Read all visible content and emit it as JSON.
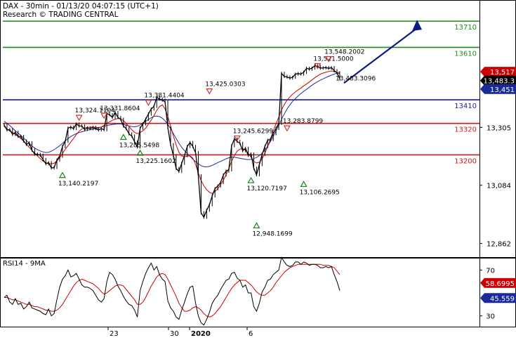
{
  "header": {
    "instrument_line": "DAX - 30min - 01/13/20 04:07:15 (UTC+1)",
    "research_line": "Research © TRADING CENTRAL"
  },
  "colors": {
    "price": "#000000",
    "ma_fast": "#cc0000",
    "ma_slow": "#1f2f99",
    "resistance_green": "#1a8c1a",
    "pivot_blue": "#1a1a99",
    "support_red": "#cc1a1a",
    "arrow": "#0d1a80",
    "triangle_top": "#cc3333",
    "triangle_bottom": "#1a801a",
    "badge_current": "#000000",
    "badge_red": "#cc0000",
    "badge_blue": "#1a2a99"
  },
  "chart_data": [
    {
      "type": "line",
      "panel": "price",
      "ylim": [
        12810,
        13780
      ],
      "y_ticks": [
        "13,305",
        "13,084",
        "12,862"
      ],
      "y_tick_values": [
        13305,
        13084,
        12862
      ],
      "x_ticks": [
        "23",
        "30",
        "2020",
        "6"
      ],
      "levels": [
        {
          "label": "13710",
          "value": 13710,
          "color": "#1a8c1a",
          "role": "resistance"
        },
        {
          "label": "13610",
          "value": 13610,
          "color": "#1a8c1a",
          "role": "resistance"
        },
        {
          "label": "13410",
          "value": 13410,
          "color": "#1a1a99",
          "role": "pivot"
        },
        {
          "label": "13320",
          "value": 13320,
          "color": "#cc1a1a",
          "role": "support"
        },
        {
          "label": "13200",
          "value": 13200,
          "color": "#cc1a1a",
          "role": "support"
        }
      ],
      "annotations": [
        {
          "label": "13,324.1104",
          "value": 13324.1104,
          "kind": "top"
        },
        {
          "label": "13,331.8604",
          "value": 13331.8604,
          "kind": "top"
        },
        {
          "label": "13,381.4404",
          "value": 13381.4404,
          "kind": "top"
        },
        {
          "label": "13,425.0303",
          "value": 13425.0303,
          "kind": "top"
        },
        {
          "label": "13,285.5498",
          "value": 13285.5498,
          "kind": "bottom"
        },
        {
          "label": "13,225.1602",
          "value": 13225.1602,
          "kind": "bottom"
        },
        {
          "label": "13,140.2197",
          "value": 13140.2197,
          "kind": "bottom"
        },
        {
          "label": "13,245.6299",
          "value": 13245.6299,
          "kind": "top"
        },
        {
          "label": "13,120.7197",
          "value": 13120.7197,
          "kind": "bottom"
        },
        {
          "label": "12,948.1699",
          "value": 12948.1699,
          "kind": "bottom"
        },
        {
          "label": "13,283.8799",
          "value": 13283.8799,
          "kind": "top"
        },
        {
          "label": "13,106.2695",
          "value": 13106.2695,
          "kind": "bottom"
        },
        {
          "label": "13,521.5000",
          "value": 13521.5,
          "kind": "top"
        },
        {
          "label": "13,548.2002",
          "value": 13548.2002,
          "kind": "top"
        },
        {
          "label": "13,483.3096",
          "value": 13483.3096,
          "kind": "line-label"
        }
      ],
      "badges": [
        {
          "label": "13,517",
          "value": 13517,
          "color": "#cc0000"
        },
        {
          "label": "13,483.3",
          "value": 13483.3,
          "color": "#000000"
        },
        {
          "label": "13,451",
          "value": 13451,
          "color": "#1a2a99"
        }
      ],
      "series": [
        {
          "role": "price",
          "values": [
            13314,
            13295,
            13296,
            13278,
            13286,
            13271,
            13270,
            13253,
            13240,
            13246,
            13218,
            13203,
            13202,
            13199,
            13182,
            13166,
            13170,
            13150,
            13152,
            13180,
            13195,
            13232,
            13252,
            13302,
            13306,
            13300,
            13318,
            13310,
            13310,
            13297,
            13302,
            13300,
            13305,
            13300,
            13295,
            13300,
            13296,
            13358,
            13353,
            13343,
            13362,
            13343,
            13336,
            13310,
            13300,
            13280,
            13272,
            13250,
            13230,
            13302,
            13318,
            13336,
            13356,
            13375,
            13385,
            13420,
            13413,
            13409,
            13402,
            13303,
            13239,
            13197,
            13148,
            13137,
            13168,
            13197,
            13232,
            13247,
            13232,
            13208,
            13120,
            12979,
            12962,
            12989,
            13010,
            13044,
            13071,
            13081,
            13094,
            13123,
            13138,
            13143,
            13235,
            13261,
            13251,
            13244,
            13216,
            13225,
            13198,
            13203,
            13149,
            13124,
            13163,
            13202,
            13232,
            13256,
            13259,
            13281,
            13301,
            13320,
            13511,
            13499,
            13497,
            13493,
            13496,
            13508,
            13510,
            13508,
            13515,
            13530,
            13527,
            13531,
            13540,
            13537,
            13531,
            13532,
            13533,
            13530,
            13533,
            13521,
            13513,
            13490
          ]
        },
        {
          "role": "ma_fast",
          "values": [
            13308,
            13298,
            13292,
            13286,
            13278,
            13270,
            13262,
            13252,
            13240,
            13229,
            13217,
            13207,
            13196,
            13186,
            13176,
            13170,
            13167,
            13166,
            13168,
            13177,
            13189,
            13205,
            13221,
            13235,
            13249,
            13263,
            13278,
            13290,
            13299,
            13303,
            13305,
            13306,
            13306,
            13305,
            13304,
            13306,
            13313,
            13320,
            13326,
            13332,
            13336,
            13339,
            13338,
            13331,
            13320,
            13308,
            13296,
            13286,
            13281,
            13285,
            13292,
            13302,
            13317,
            13333,
            13350,
            13370,
            13384,
            13391,
            13375,
            13346,
            13310,
            13272,
            13238,
            13210,
            13196,
            13193,
            13195,
            13196,
            13188,
            13164,
            13131,
            13103,
            13082,
            13067,
            13057,
            13053,
            13060,
            13071,
            13086,
            13103,
            13124,
            13148,
            13175,
            13198,
            13214,
            13222,
            13224,
            13218,
            13206,
            13191,
            13175,
            13169,
            13172,
            13185,
            13206,
            13232,
            13260,
            13291,
            13318,
            13344,
            13372,
            13392,
            13409,
            13421,
            13431,
            13440,
            13448,
            13455,
            13463,
            13470,
            13478,
            13486,
            13494,
            13501,
            13508,
            13512,
            13515,
            13518,
            13520,
            13518,
            13514,
            13508
          ]
        },
        {
          "role": "ma_slow",
          "values": [
            13328,
            13320,
            13312,
            13302,
            13292,
            13283,
            13274,
            13264,
            13254,
            13244,
            13234,
            13226,
            13220,
            13215,
            13211,
            13209,
            13210,
            13214,
            13220,
            13227,
            13235,
            13244,
            13253,
            13262,
            13270,
            13276,
            13281,
            13285,
            13288,
            13291,
            13294,
            13296,
            13298,
            13300,
            13303,
            13306,
            13309,
            13312,
            13314,
            13316,
            13317,
            13318,
            13318,
            13316,
            13313,
            13310,
            13308,
            13307,
            13309,
            13314,
            13320,
            13328,
            13335,
            13342,
            13347,
            13348,
            13346,
            13340,
            13330,
            13316,
            13300,
            13281,
            13262,
            13244,
            13229,
            13216,
            13205,
            13194,
            13184,
            13174,
            13166,
            13159,
            13155,
            13154,
            13156,
            13160,
            13165,
            13170,
            13175,
            13180,
            13185,
            13189,
            13191,
            13191,
            13189,
            13187,
            13185,
            13183,
            13182,
            13183,
            13186,
            13190,
            13197,
            13206,
            13218,
            13233,
            13251,
            13270,
            13291,
            13313,
            13336,
            13356,
            13375,
            13391,
            13404,
            13415,
            13425,
            13434,
            13442,
            13450,
            13458,
            13466,
            13473,
            13479,
            13485,
            13490,
            13495,
            13500,
            13504,
            13508,
            13512,
            13516
          ]
        }
      ],
      "forecast_arrow": {
        "from": 13490,
        "to": 13710
      }
    },
    {
      "type": "line",
      "panel": "oscillator",
      "title": "RSI14 - 9MA",
      "ylim": [
        20,
        80
      ],
      "y_ticks": [
        "70",
        "30"
      ],
      "y_tick_values": [
        70,
        30
      ],
      "badges": [
        {
          "label": "58.6995",
          "value": 58.6995,
          "color": "#cc0000"
        },
        {
          "label": "45.559",
          "value": 45.559,
          "color": "#1a2a99"
        }
      ],
      "series": [
        {
          "role": "rsi",
          "values": [
            46,
            48,
            42,
            40,
            45,
            40,
            41,
            36,
            38,
            42,
            37,
            36,
            35,
            34,
            32,
            31,
            36,
            30,
            32,
            44,
            55,
            62,
            65,
            70,
            64,
            65,
            67,
            62,
            57,
            55,
            55,
            54,
            52,
            48,
            44,
            42,
            45,
            60,
            68,
            66,
            62,
            56,
            52,
            47,
            43,
            40,
            39,
            35,
            29,
            52,
            60,
            67,
            72,
            76,
            70,
            73,
            66,
            62,
            60,
            43,
            37,
            34,
            29,
            27,
            35,
            42,
            49,
            55,
            56,
            41,
            30,
            24,
            22,
            27,
            33,
            41,
            45,
            48,
            53,
            57,
            61,
            62,
            67,
            68,
            63,
            61,
            55,
            57,
            50,
            50,
            38,
            34,
            41,
            51,
            55,
            61,
            62,
            66,
            68,
            70,
            81,
            77,
            74,
            73,
            74,
            77,
            77,
            75,
            77,
            76,
            74,
            75,
            75,
            74,
            72,
            72,
            73,
            72,
            73,
            66,
            60,
            52
          ]
        },
        {
          "role": "rsi_ma",
          "values": [
            46,
            46,
            45,
            44,
            44,
            43,
            42,
            41,
            40,
            40,
            39,
            38,
            38,
            37,
            36,
            35,
            35,
            34,
            34,
            35,
            37,
            40,
            44,
            48,
            52,
            56,
            59,
            61,
            62,
            61,
            60,
            59,
            58,
            56,
            54,
            51,
            49,
            50,
            52,
            54,
            56,
            57,
            57,
            56,
            53,
            50,
            47,
            44,
            40,
            40,
            42,
            46,
            51,
            56,
            60,
            64,
            66,
            67,
            66,
            62,
            57,
            52,
            47,
            41,
            37,
            34,
            34,
            35,
            37,
            38,
            37,
            35,
            32,
            30,
            29,
            30,
            32,
            35,
            38,
            42,
            46,
            50,
            54,
            57,
            59,
            61,
            61,
            61,
            59,
            57,
            54,
            51,
            49,
            48,
            48,
            50,
            52,
            55,
            59,
            62,
            65,
            68,
            70,
            72,
            73,
            74,
            75,
            75,
            75,
            75,
            75,
            75,
            75,
            75,
            75,
            74,
            74,
            74,
            73,
            72,
            69,
            66
          ]
        }
      ]
    }
  ]
}
